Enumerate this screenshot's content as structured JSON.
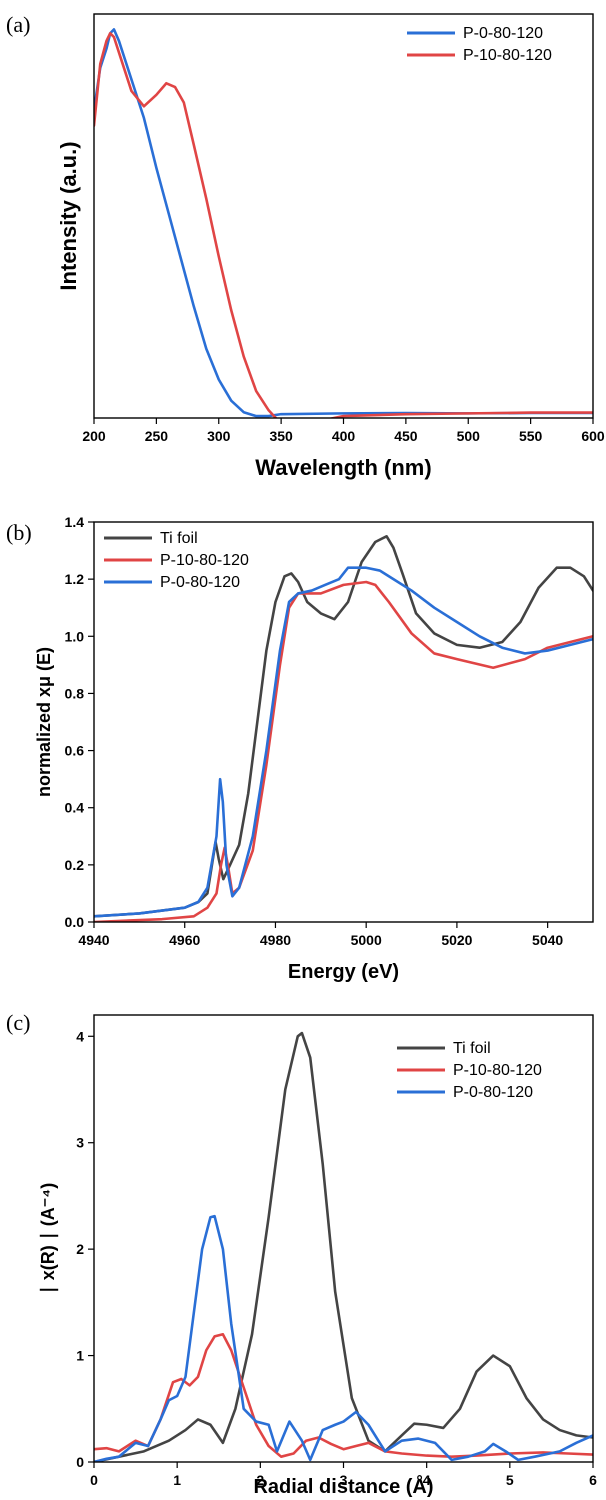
{
  "chart_data": [
    {
      "panel_label": "(a)",
      "type": "line",
      "xlabel": "Wavelength (nm)",
      "ylabel": "Intensity (a.u.)",
      "xlim": [
        200,
        600
      ],
      "ylim": [
        0,
        1.05
      ],
      "xticks": [
        200,
        250,
        300,
        350,
        400,
        450,
        500,
        550,
        600
      ],
      "yticks": [],
      "legend_position": "top-right",
      "series": [
        {
          "name": "P-0-80-120",
          "color": "#2a6fd6",
          "x": [
            200,
            205,
            210,
            213,
            216,
            220,
            230,
            240,
            250,
            260,
            270,
            280,
            290,
            300,
            310,
            320,
            330,
            340,
            350,
            400,
            450,
            500,
            550,
            600
          ],
          "y": [
            0.8,
            0.91,
            0.96,
            1.0,
            1.01,
            0.98,
            0.88,
            0.78,
            0.65,
            0.53,
            0.41,
            0.29,
            0.18,
            0.1,
            0.045,
            0.015,
            0.005,
            0.005,
            0.01,
            0.012,
            0.013,
            0.012,
            0.013,
            0.013
          ]
        },
        {
          "name": "P-10-80-120",
          "color": "#e04545",
          "x": [
            200,
            205,
            210,
            213,
            216,
            222,
            230,
            240,
            250,
            258,
            265,
            272,
            280,
            290,
            300,
            310,
            320,
            330,
            340,
            350,
            360,
            370,
            400,
            450,
            500,
            550,
            600
          ],
          "y": [
            0.76,
            0.92,
            0.98,
            1.0,
            0.99,
            0.93,
            0.85,
            0.81,
            0.84,
            0.87,
            0.86,
            0.82,
            0.71,
            0.57,
            0.42,
            0.28,
            0.16,
            0.07,
            0.02,
            -0.015,
            -0.03,
            -0.015,
            0.005,
            0.01,
            0.012,
            0.014,
            0.014
          ]
        }
      ]
    },
    {
      "panel_label": "(b)",
      "type": "line",
      "xlabel": "Energy (eV)",
      "ylabel": "normalized xμ (E)",
      "xlim": [
        4940,
        5050
      ],
      "ylim": [
        0,
        1.4
      ],
      "xticks": [
        4940,
        4960,
        4980,
        5000,
        5020,
        5040
      ],
      "yticks": [
        0.0,
        0.2,
        0.4,
        0.6,
        0.8,
        1.0,
        1.2,
        1.4
      ],
      "ytick_labels": [
        "0.0",
        "0.2",
        "0.4",
        "0.6",
        "0.8",
        "1.0",
        "1.2",
        "1.4"
      ],
      "legend_position": "top-left",
      "series": [
        {
          "name": "Ti foil",
          "color": "#444444",
          "x": [
            4940,
            4950,
            4960,
            4963,
            4965,
            4966,
            4966.8,
            4967.5,
            4968.5,
            4970,
            4972,
            4974,
            4976,
            4978,
            4980,
            4982,
            4983.5,
            4985,
            4987,
            4990,
            4993,
            4996,
            4999,
            5002,
            5004.5,
            5006,
            5008,
            5011,
            5015,
            5020,
            5025,
            5030,
            5034,
            5038,
            5042,
            5045,
            5048,
            5050
          ],
          "y": [
            0.02,
            0.03,
            0.05,
            0.07,
            0.1,
            0.2,
            0.28,
            0.22,
            0.15,
            0.2,
            0.27,
            0.45,
            0.7,
            0.95,
            1.12,
            1.21,
            1.22,
            1.19,
            1.12,
            1.08,
            1.06,
            1.12,
            1.26,
            1.33,
            1.35,
            1.31,
            1.22,
            1.08,
            1.01,
            0.97,
            0.96,
            0.98,
            1.05,
            1.17,
            1.24,
            1.24,
            1.21,
            1.16
          ]
        },
        {
          "name": "P-10-80-120",
          "color": "#e04545",
          "x": [
            4940,
            4955,
            4962,
            4965,
            4967,
            4968,
            4968.8,
            4969.5,
            4970.5,
            4972,
            4975,
            4978,
            4981,
            4983,
            4985,
            4990,
            4995,
            5000,
            5002,
            5005,
            5010,
            5015,
            5020,
            5028,
            5035,
            5040,
            5045,
            5050
          ],
          "y": [
            0.0,
            0.01,
            0.02,
            0.05,
            0.1,
            0.2,
            0.26,
            0.2,
            0.1,
            0.12,
            0.25,
            0.55,
            0.9,
            1.1,
            1.15,
            1.15,
            1.18,
            1.19,
            1.18,
            1.12,
            1.01,
            0.94,
            0.92,
            0.89,
            0.92,
            0.96,
            0.98,
            1.0
          ]
        },
        {
          "name": "P-0-80-120",
          "color": "#2a6fd6",
          "x": [
            4940,
            4950,
            4960,
            4963,
            4965,
            4967,
            4967.8,
            4968.4,
            4969.2,
            4970.5,
            4972,
            4975,
            4978,
            4981,
            4983,
            4985,
            4988,
            4991,
            4994,
            4996,
            5000,
            5003,
            5006,
            5010,
            5015,
            5020,
            5025,
            5030,
            5035,
            5040,
            5045,
            5050
          ],
          "y": [
            0.02,
            0.03,
            0.05,
            0.07,
            0.12,
            0.3,
            0.5,
            0.42,
            0.2,
            0.09,
            0.12,
            0.3,
            0.6,
            0.95,
            1.12,
            1.15,
            1.16,
            1.18,
            1.2,
            1.24,
            1.24,
            1.23,
            1.2,
            1.16,
            1.1,
            1.05,
            1.0,
            0.96,
            0.94,
            0.95,
            0.97,
            0.99
          ]
        }
      ]
    },
    {
      "panel_label": "(c)",
      "type": "line",
      "xlabel": "Radial distance (Å)",
      "ylabel": "∣ x(R) ∣ (A⁻⁴)",
      "xlim": [
        0,
        6
      ],
      "ylim": [
        0,
        4.2
      ],
      "xticks": [
        0,
        1,
        2,
        3,
        4,
        5,
        6
      ],
      "yticks": [
        0,
        1,
        2,
        3,
        4
      ],
      "legend_position": "top-right",
      "series": [
        {
          "name": "Ti foil",
          "color": "#444444",
          "x": [
            0,
            0.3,
            0.6,
            0.9,
            1.1,
            1.25,
            1.4,
            1.55,
            1.7,
            1.9,
            2.1,
            2.3,
            2.45,
            2.5,
            2.6,
            2.75,
            2.9,
            3.1,
            3.3,
            3.5,
            3.7,
            3.85,
            4.0,
            4.2,
            4.4,
            4.6,
            4.8,
            5.0,
            5.2,
            5.4,
            5.6,
            5.8,
            6.0
          ],
          "y": [
            0.0,
            0.05,
            0.1,
            0.2,
            0.3,
            0.4,
            0.35,
            0.18,
            0.5,
            1.2,
            2.3,
            3.5,
            4.0,
            4.03,
            3.8,
            2.8,
            1.6,
            0.6,
            0.2,
            0.1,
            0.25,
            0.36,
            0.35,
            0.32,
            0.5,
            0.85,
            1.0,
            0.9,
            0.6,
            0.4,
            0.3,
            0.25,
            0.23
          ]
        },
        {
          "name": "P-10-80-120",
          "color": "#e04545",
          "x": [
            0,
            0.15,
            0.3,
            0.5,
            0.65,
            0.8,
            0.95,
            1.05,
            1.15,
            1.25,
            1.35,
            1.45,
            1.55,
            1.65,
            1.8,
            1.95,
            2.1,
            2.25,
            2.4,
            2.55,
            2.7,
            2.85,
            3.0,
            3.15,
            3.3,
            3.5,
            3.7,
            4.0,
            4.3,
            4.6,
            5.0,
            5.4,
            5.7,
            6.0
          ],
          "y": [
            0.12,
            0.13,
            0.1,
            0.2,
            0.15,
            0.4,
            0.75,
            0.78,
            0.72,
            0.8,
            1.05,
            1.18,
            1.2,
            1.05,
            0.7,
            0.35,
            0.15,
            0.05,
            0.08,
            0.2,
            0.23,
            0.17,
            0.12,
            0.15,
            0.18,
            0.1,
            0.08,
            0.06,
            0.05,
            0.06,
            0.08,
            0.09,
            0.08,
            0.07
          ]
        },
        {
          "name": "P-0-80-120",
          "color": "#2a6fd6",
          "x": [
            0,
            0.15,
            0.3,
            0.5,
            0.65,
            0.8,
            0.9,
            1.0,
            1.1,
            1.2,
            1.3,
            1.4,
            1.45,
            1.55,
            1.65,
            1.8,
            1.95,
            2.1,
            2.2,
            2.35,
            2.5,
            2.6,
            2.75,
            2.9,
            3.0,
            3.15,
            3.3,
            3.5,
            3.7,
            3.9,
            4.1,
            4.3,
            4.5,
            4.7,
            4.8,
            4.95,
            5.1,
            5.3,
            5.6,
            5.8,
            6.0
          ],
          "y": [
            0.0,
            0.03,
            0.05,
            0.18,
            0.15,
            0.4,
            0.58,
            0.62,
            0.8,
            1.4,
            2.0,
            2.3,
            2.31,
            2.0,
            1.3,
            0.5,
            0.38,
            0.35,
            0.1,
            0.38,
            0.2,
            0.02,
            0.3,
            0.35,
            0.38,
            0.47,
            0.35,
            0.1,
            0.2,
            0.22,
            0.18,
            0.02,
            0.05,
            0.1,
            0.17,
            0.1,
            0.02,
            0.05,
            0.1,
            0.18,
            0.25
          ]
        }
      ]
    }
  ]
}
